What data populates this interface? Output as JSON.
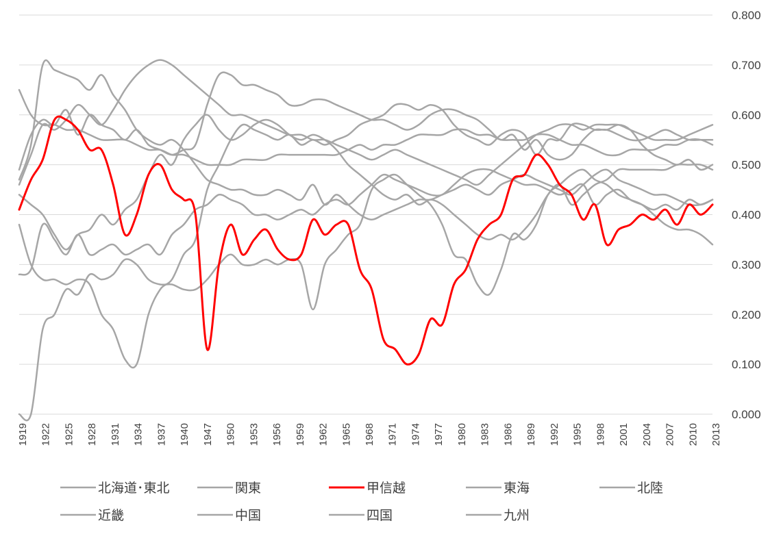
{
  "chart_data": {
    "type": "line",
    "y_axis_position": "right",
    "ylim": [
      0,
      0.8
    ],
    "y_ticks": [
      "0.000",
      "0.100",
      "0.200",
      "0.300",
      "0.400",
      "0.500",
      "0.600",
      "0.700",
      "0.800"
    ],
    "x_ticks": [
      "1919",
      "1922",
      "1925",
      "1928",
      "1931",
      "1934",
      "1937",
      "1940",
      "1947",
      "1950",
      "1953",
      "1956",
      "1959",
      "1962",
      "1965",
      "1968",
      "1971",
      "1974",
      "1977",
      "1980",
      "1983",
      "1986",
      "1989",
      "1992",
      "1995",
      "1998",
      "2001",
      "2004",
      "2007",
      "2010",
      "2013"
    ],
    "grid": true,
    "legend_position": "bottom",
    "series": [
      {
        "name": "北海道･東北",
        "color": "#a6a6a6",
        "values": [
          0.47,
          0.54,
          0.7,
          0.69,
          0.68,
          0.67,
          0.65,
          0.68,
          0.64,
          0.61,
          0.57,
          0.55,
          0.54,
          0.55,
          0.53,
          0.5,
          0.47,
          0.46,
          0.45,
          0.45,
          0.44,
          0.44,
          0.45,
          0.44,
          0.43,
          0.46,
          0.42,
          0.44,
          0.42,
          0.4,
          0.39,
          0.4,
          0.41,
          0.42,
          0.43,
          0.43,
          0.44,
          0.45,
          0.46,
          0.45,
          0.44,
          0.46,
          0.47,
          0.48,
          0.47,
          0.46,
          0.45,
          0.44,
          0.46,
          0.48,
          0.49,
          0.47,
          0.46,
          0.45,
          0.44,
          0.44,
          0.43,
          0.42,
          0.42,
          0.43
        ]
      },
      {
        "name": "関東",
        "color": "#a6a6a6",
        "values": [
          0.65,
          0.6,
          0.58,
          0.58,
          0.57,
          0.57,
          0.56,
          0.55,
          0.55,
          0.55,
          0.54,
          0.53,
          0.53,
          0.52,
          0.52,
          0.51,
          0.5,
          0.5,
          0.5,
          0.51,
          0.51,
          0.51,
          0.52,
          0.52,
          0.52,
          0.52,
          0.52,
          0.52,
          0.53,
          0.54,
          0.53,
          0.54,
          0.54,
          0.55,
          0.56,
          0.56,
          0.56,
          0.57,
          0.57,
          0.56,
          0.56,
          0.55,
          0.55,
          0.55,
          0.56,
          0.56,
          0.55,
          0.54,
          0.54,
          0.53,
          0.52,
          0.52,
          0.53,
          0.53,
          0.53,
          0.54,
          0.54,
          0.55,
          0.55,
          0.54
        ]
      },
      {
        "name": "甲信越",
        "color": "#ff0000",
        "values": [
          0.41,
          0.47,
          0.51,
          0.59,
          0.59,
          0.57,
          0.53,
          0.53,
          0.46,
          0.36,
          0.4,
          0.48,
          0.5,
          0.45,
          0.43,
          0.4,
          0.13,
          0.3,
          0.38,
          0.32,
          0.35,
          0.37,
          0.33,
          0.31,
          0.32,
          0.39,
          0.36,
          0.38,
          0.38,
          0.29,
          0.25,
          0.15,
          0.13,
          0.1,
          0.12,
          0.19,
          0.18,
          0.26,
          0.29,
          0.35,
          0.38,
          0.4,
          0.47,
          0.48,
          0.52,
          0.5,
          0.46,
          0.44,
          0.39,
          0.42,
          0.34,
          0.37,
          0.38,
          0.4,
          0.39,
          0.41,
          0.38,
          0.42,
          0.4,
          0.42
        ]
      },
      {
        "name": "東海",
        "color": "#a6a6a6",
        "values": [
          0.28,
          0.29,
          0.38,
          0.35,
          0.32,
          0.36,
          0.32,
          0.33,
          0.34,
          0.32,
          0.33,
          0.34,
          0.32,
          0.36,
          0.38,
          0.41,
          0.42,
          0.44,
          0.43,
          0.42,
          0.4,
          0.4,
          0.39,
          0.4,
          0.41,
          0.4,
          0.42,
          0.43,
          0.42,
          0.44,
          0.46,
          0.48,
          0.47,
          0.46,
          0.45,
          0.44,
          0.44,
          0.46,
          0.48,
          0.49,
          0.49,
          0.48,
          0.47,
          0.46,
          0.46,
          0.45,
          0.44,
          0.45,
          0.46,
          0.42,
          0.44,
          0.45,
          0.43,
          0.42,
          0.41,
          0.42,
          0.41,
          0.43,
          0.42,
          0.43
        ]
      },
      {
        "name": "北陸",
        "color": "#a6a6a6",
        "values": [
          0.44,
          0.42,
          0.4,
          0.36,
          0.33,
          0.36,
          0.37,
          0.4,
          0.38,
          0.41,
          0.43,
          0.48,
          0.52,
          0.5,
          0.55,
          0.58,
          0.6,
          0.57,
          0.55,
          0.56,
          0.58,
          0.59,
          0.58,
          0.56,
          0.55,
          0.56,
          0.55,
          0.53,
          0.5,
          0.48,
          0.46,
          0.44,
          0.43,
          0.44,
          0.42,
          0.43,
          0.42,
          0.4,
          0.38,
          0.36,
          0.35,
          0.36,
          0.35,
          0.37,
          0.4,
          0.44,
          0.46,
          0.42,
          0.44,
          0.46,
          0.47,
          0.49,
          0.49,
          0.49,
          0.49,
          0.49,
          0.5,
          0.5,
          0.5,
          0.49
        ]
      },
      {
        "name": "近畿",
        "color": "#a6a6a6",
        "values": [
          0.46,
          0.52,
          0.58,
          0.57,
          0.59,
          0.62,
          0.6,
          0.58,
          0.61,
          0.65,
          0.68,
          0.7,
          0.71,
          0.7,
          0.68,
          0.66,
          0.64,
          0.62,
          0.6,
          0.6,
          0.59,
          0.58,
          0.57,
          0.56,
          0.56,
          0.55,
          0.55,
          0.54,
          0.53,
          0.52,
          0.51,
          0.52,
          0.53,
          0.52,
          0.51,
          0.5,
          0.49,
          0.48,
          0.47,
          0.46,
          0.48,
          0.5,
          0.52,
          0.54,
          0.56,
          0.57,
          0.58,
          0.58,
          0.57,
          0.58,
          0.58,
          0.58,
          0.57,
          0.56,
          0.55,
          0.55,
          0.55,
          0.56,
          0.57,
          0.58
        ]
      },
      {
        "name": "中国",
        "color": "#a6a6a6",
        "values": [
          0.38,
          0.3,
          0.27,
          0.27,
          0.26,
          0.27,
          0.26,
          0.2,
          0.17,
          0.11,
          0.1,
          0.2,
          0.25,
          0.27,
          0.32,
          0.35,
          0.45,
          0.5,
          0.55,
          0.58,
          0.57,
          0.56,
          0.55,
          0.56,
          0.54,
          0.55,
          0.54,
          0.55,
          0.56,
          0.58,
          0.59,
          0.6,
          0.62,
          0.62,
          0.61,
          0.62,
          0.61,
          0.58,
          0.56,
          0.55,
          0.54,
          0.56,
          0.57,
          0.56,
          0.52,
          0.55,
          0.55,
          0.58,
          0.58,
          0.57,
          0.57,
          0.56,
          0.55,
          0.55,
          0.56,
          0.57,
          0.56,
          0.55,
          0.55,
          0.55
        ]
      },
      {
        "name": "四国",
        "color": "#a6a6a6",
        "values": [
          0.0,
          0.0,
          0.17,
          0.2,
          0.25,
          0.24,
          0.28,
          0.27,
          0.28,
          0.31,
          0.3,
          0.27,
          0.26,
          0.26,
          0.25,
          0.25,
          0.27,
          0.3,
          0.32,
          0.3,
          0.3,
          0.31,
          0.3,
          0.31,
          0.3,
          0.21,
          0.3,
          0.33,
          0.36,
          0.38,
          0.45,
          0.47,
          0.48,
          0.46,
          0.44,
          0.42,
          0.38,
          0.32,
          0.31,
          0.26,
          0.24,
          0.29,
          0.36,
          0.35,
          0.38,
          0.44,
          0.46,
          0.48,
          0.49,
          0.47,
          0.46,
          0.44,
          0.43,
          0.42,
          0.4,
          0.38,
          0.37,
          0.37,
          0.36,
          0.34
        ]
      },
      {
        "name": "九州",
        "color": "#a6a6a6",
        "values": [
          0.49,
          0.56,
          0.59,
          0.58,
          0.61,
          0.56,
          0.6,
          0.58,
          0.57,
          0.55,
          0.57,
          0.54,
          0.53,
          0.52,
          0.53,
          0.54,
          0.62,
          0.68,
          0.68,
          0.66,
          0.66,
          0.65,
          0.64,
          0.62,
          0.62,
          0.63,
          0.63,
          0.62,
          0.61,
          0.6,
          0.59,
          0.59,
          0.58,
          0.57,
          0.58,
          0.6,
          0.61,
          0.61,
          0.6,
          0.59,
          0.57,
          0.55,
          0.56,
          0.53,
          0.55,
          0.52,
          0.51,
          0.52,
          0.55,
          0.57,
          0.57,
          0.58,
          0.57,
          0.54,
          0.52,
          0.51,
          0.5,
          0.51,
          0.49,
          0.5
        ]
      }
    ]
  }
}
